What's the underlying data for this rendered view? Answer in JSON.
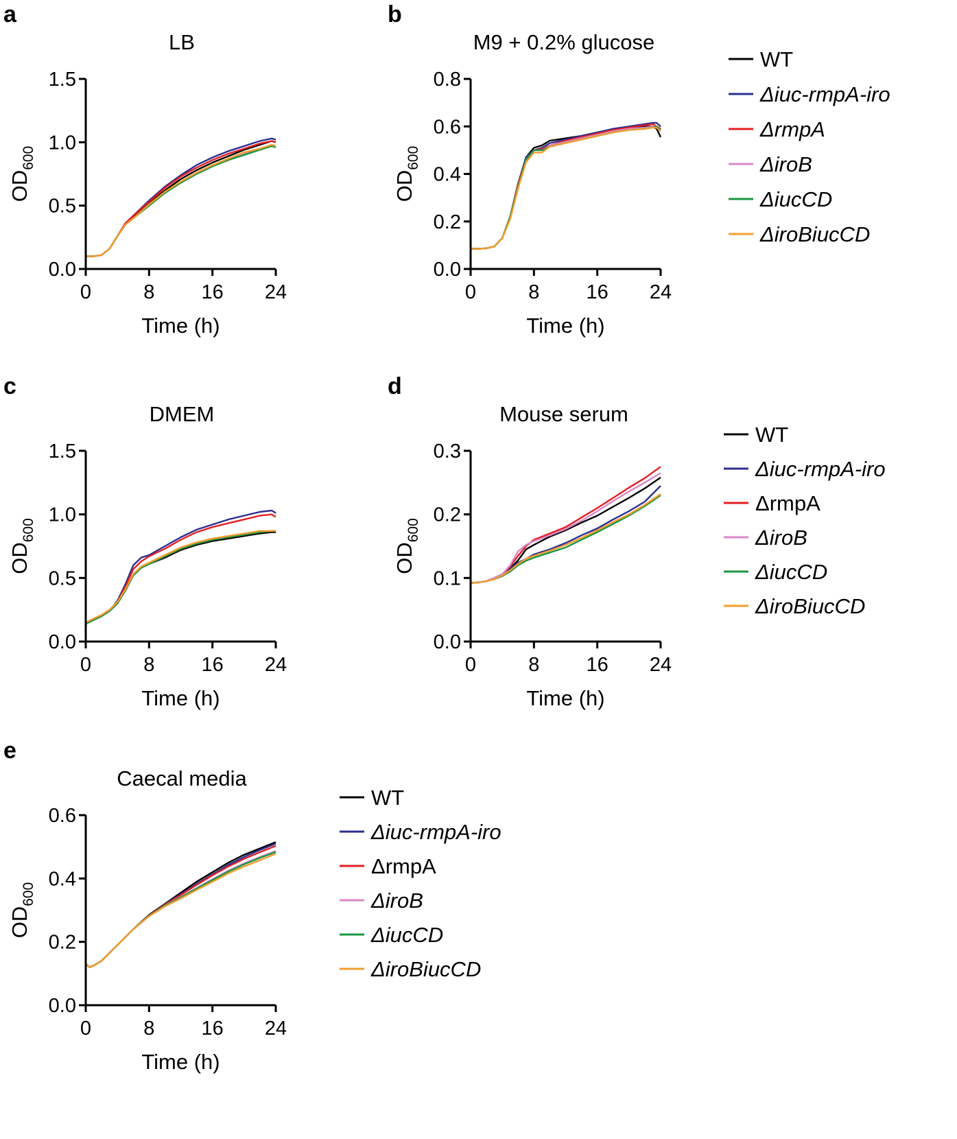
{
  "figure": {
    "colors": {
      "WT": "#000000",
      "iuc_rmpA_iro": "#2b2f8f",
      "rmpA": "#e31e24",
      "iroB": "#d988c8",
      "iucCD": "#1a9641",
      "iroBiucCD": "#f39c2d"
    }
  },
  "chart_data": [
    {
      "panel": "a",
      "type": "line",
      "title": "LB",
      "xlabel": "Time (h)",
      "ylabel": "OD",
      "ylabel_sub": "600",
      "xlim": [
        0,
        24
      ],
      "ylim": [
        0,
        1.5
      ],
      "xticks": [
        "0",
        "8",
        "16",
        "24"
      ],
      "yticks": [
        "0.0",
        "0.5",
        "1.0",
        "1.5"
      ],
      "x": [
        0,
        1,
        2,
        3,
        4,
        5,
        6,
        8,
        10,
        12,
        14,
        16,
        18,
        20,
        22,
        23.5,
        24
      ],
      "series": [
        {
          "name": "WT",
          "values": [
            0.1,
            0.1,
            0.11,
            0.16,
            0.26,
            0.35,
            0.41,
            0.52,
            0.62,
            0.71,
            0.78,
            0.84,
            0.89,
            0.94,
            0.98,
            1.01,
            1.0
          ]
        },
        {
          "name": "Δiuc-rmpA-iro",
          "values": [
            0.1,
            0.1,
            0.11,
            0.16,
            0.26,
            0.36,
            0.42,
            0.54,
            0.65,
            0.74,
            0.82,
            0.88,
            0.93,
            0.97,
            1.01,
            1.03,
            1.02
          ]
        },
        {
          "name": "ΔrmpA",
          "values": [
            0.1,
            0.1,
            0.11,
            0.16,
            0.26,
            0.36,
            0.42,
            0.53,
            0.64,
            0.73,
            0.8,
            0.86,
            0.91,
            0.95,
            0.99,
            1.01,
            1.0
          ]
        },
        {
          "name": "ΔiroB",
          "values": [
            0.1,
            0.1,
            0.11,
            0.16,
            0.26,
            0.35,
            0.4,
            0.5,
            0.6,
            0.68,
            0.75,
            0.81,
            0.86,
            0.91,
            0.95,
            0.97,
            0.97
          ]
        },
        {
          "name": "ΔiucCD",
          "values": [
            0.1,
            0.1,
            0.11,
            0.16,
            0.26,
            0.35,
            0.4,
            0.5,
            0.6,
            0.68,
            0.75,
            0.81,
            0.86,
            0.9,
            0.94,
            0.97,
            0.96
          ]
        },
        {
          "name": "ΔiroBiucCD",
          "values": [
            0.1,
            0.1,
            0.11,
            0.16,
            0.26,
            0.35,
            0.4,
            0.51,
            0.61,
            0.69,
            0.76,
            0.82,
            0.87,
            0.92,
            0.95,
            0.98,
            0.97
          ]
        }
      ]
    },
    {
      "panel": "b",
      "type": "line",
      "title": "M9 + 0.2% glucose",
      "xlabel": "Time (h)",
      "ylabel": "OD",
      "ylabel_sub": "600",
      "xlim": [
        0,
        24
      ],
      "ylim": [
        0,
        0.8
      ],
      "xticks": [
        "0",
        "8",
        "16",
        "24"
      ],
      "yticks": [
        "0.0",
        "0.2",
        "0.4",
        "0.6",
        "0.8"
      ],
      "x": [
        0,
        1,
        2,
        3,
        4,
        5,
        6,
        7,
        8,
        9,
        10,
        12,
        14,
        16,
        18,
        20,
        22,
        23,
        23.5,
        24
      ],
      "series": [
        {
          "name": "WT",
          "values": [
            0.085,
            0.085,
            0.087,
            0.095,
            0.13,
            0.22,
            0.36,
            0.47,
            0.51,
            0.52,
            0.54,
            0.55,
            0.56,
            0.575,
            0.585,
            0.595,
            0.6,
            0.6,
            0.59,
            0.555
          ]
        },
        {
          "name": "Δiuc-rmpA-iro",
          "values": [
            0.085,
            0.085,
            0.087,
            0.095,
            0.13,
            0.22,
            0.36,
            0.47,
            0.5,
            0.51,
            0.53,
            0.545,
            0.56,
            0.575,
            0.59,
            0.6,
            0.61,
            0.615,
            0.615,
            0.6
          ]
        },
        {
          "name": "ΔrmpA",
          "values": [
            0.085,
            0.085,
            0.087,
            0.095,
            0.13,
            0.22,
            0.36,
            0.46,
            0.5,
            0.505,
            0.52,
            0.54,
            0.555,
            0.57,
            0.585,
            0.595,
            0.605,
            0.61,
            0.6,
            0.59
          ]
        },
        {
          "name": "ΔiroB",
          "values": [
            0.085,
            0.085,
            0.087,
            0.095,
            0.13,
            0.22,
            0.35,
            0.46,
            0.5,
            0.5,
            0.52,
            0.535,
            0.55,
            0.565,
            0.58,
            0.59,
            0.595,
            0.6,
            0.6,
            0.585
          ]
        },
        {
          "name": "ΔiucCD",
          "values": [
            0.085,
            0.085,
            0.087,
            0.095,
            0.13,
            0.22,
            0.35,
            0.46,
            0.5,
            0.5,
            0.515,
            0.53,
            0.545,
            0.56,
            0.575,
            0.585,
            0.59,
            0.595,
            0.6,
            0.585
          ]
        },
        {
          "name": "ΔiroBiucCD",
          "values": [
            0.085,
            0.085,
            0.087,
            0.095,
            0.13,
            0.21,
            0.34,
            0.45,
            0.49,
            0.49,
            0.515,
            0.53,
            0.545,
            0.56,
            0.575,
            0.585,
            0.59,
            0.595,
            0.595,
            0.58
          ]
        }
      ]
    },
    {
      "panel": "c",
      "type": "line",
      "title": "DMEM",
      "xlabel": "Time (h)",
      "ylabel": "OD",
      "ylabel_sub": "600",
      "xlim": [
        0,
        24
      ],
      "ylim": [
        0,
        1.5
      ],
      "xticks": [
        "0",
        "8",
        "16",
        "24"
      ],
      "yticks": [
        "0.0",
        "0.5",
        "1.0",
        "1.5"
      ],
      "x": [
        0,
        1,
        2,
        3,
        4,
        5,
        6,
        7,
        8,
        10,
        12,
        14,
        16,
        18,
        20,
        22,
        23.5,
        24
      ],
      "series": [
        {
          "name": "WT",
          "values": [
            0.14,
            0.17,
            0.2,
            0.24,
            0.3,
            0.4,
            0.52,
            0.58,
            0.61,
            0.66,
            0.72,
            0.76,
            0.79,
            0.81,
            0.83,
            0.85,
            0.86,
            0.86
          ]
        },
        {
          "name": "Δiuc-rmpA-iro",
          "values": [
            0.14,
            0.17,
            0.2,
            0.24,
            0.32,
            0.45,
            0.6,
            0.66,
            0.68,
            0.75,
            0.82,
            0.88,
            0.92,
            0.96,
            0.99,
            1.02,
            1.03,
            1.01
          ]
        },
        {
          "name": "ΔrmpA",
          "values": [
            0.14,
            0.17,
            0.2,
            0.24,
            0.31,
            0.43,
            0.57,
            0.63,
            0.67,
            0.73,
            0.8,
            0.86,
            0.9,
            0.93,
            0.96,
            0.99,
            1.0,
            0.98
          ]
        },
        {
          "name": "ΔiroB",
          "values": [
            0.14,
            0.17,
            0.2,
            0.24,
            0.3,
            0.4,
            0.52,
            0.58,
            0.61,
            0.67,
            0.73,
            0.77,
            0.8,
            0.82,
            0.84,
            0.86,
            0.87,
            0.87
          ]
        },
        {
          "name": "ΔiucCD",
          "values": [
            0.14,
            0.17,
            0.2,
            0.24,
            0.3,
            0.4,
            0.52,
            0.58,
            0.61,
            0.67,
            0.73,
            0.77,
            0.8,
            0.82,
            0.84,
            0.86,
            0.87,
            0.87
          ]
        },
        {
          "name": "ΔiroBiucCD",
          "values": [
            0.15,
            0.18,
            0.21,
            0.25,
            0.31,
            0.41,
            0.53,
            0.59,
            0.62,
            0.68,
            0.74,
            0.78,
            0.81,
            0.83,
            0.85,
            0.87,
            0.87,
            0.87
          ]
        }
      ]
    },
    {
      "panel": "d",
      "type": "line",
      "title": "Mouse serum",
      "xlabel": "Time (h)",
      "ylabel": "OD",
      "ylabel_sub": "600",
      "xlim": [
        0,
        24
      ],
      "ylim": [
        0,
        0.3
      ],
      "xticks": [
        "0",
        "8",
        "16",
        "24"
      ],
      "yticks": [
        "0.0",
        "0.1",
        "0.2",
        "0.3"
      ],
      "x": [
        0,
        1,
        2,
        3,
        4,
        5,
        6,
        7,
        8,
        10,
        12,
        14,
        16,
        18,
        20,
        22,
        24
      ],
      "series": [
        {
          "name": "WT",
          "values": [
            0.092,
            0.093,
            0.095,
            0.1,
            0.106,
            0.115,
            0.128,
            0.145,
            0.152,
            0.165,
            0.175,
            0.187,
            0.198,
            0.212,
            0.226,
            0.241,
            0.258
          ]
        },
        {
          "name": "Δiuc-rmpA-iro",
          "values": [
            0.092,
            0.093,
            0.095,
            0.1,
            0.106,
            0.115,
            0.124,
            0.13,
            0.137,
            0.145,
            0.155,
            0.167,
            0.178,
            0.192,
            0.205,
            0.22,
            0.245
          ]
        },
        {
          "name": "ΔrmpA",
          "values": [
            0.092,
            0.093,
            0.095,
            0.1,
            0.106,
            0.118,
            0.135,
            0.15,
            0.16,
            0.17,
            0.18,
            0.195,
            0.21,
            0.226,
            0.242,
            0.257,
            0.275
          ]
        },
        {
          "name": "ΔiroB",
          "values": [
            0.092,
            0.093,
            0.095,
            0.1,
            0.106,
            0.12,
            0.142,
            0.152,
            0.158,
            0.167,
            0.177,
            0.19,
            0.205,
            0.221,
            0.236,
            0.25,
            0.265
          ]
        },
        {
          "name": "ΔiucCD",
          "values": [
            0.092,
            0.093,
            0.095,
            0.098,
            0.103,
            0.11,
            0.12,
            0.127,
            0.132,
            0.14,
            0.148,
            0.16,
            0.172,
            0.185,
            0.198,
            0.213,
            0.23
          ]
        },
        {
          "name": "ΔiroBiucCD",
          "values": [
            0.092,
            0.093,
            0.095,
            0.098,
            0.104,
            0.112,
            0.122,
            0.13,
            0.135,
            0.143,
            0.152,
            0.163,
            0.175,
            0.188,
            0.2,
            0.215,
            0.232
          ]
        }
      ]
    },
    {
      "panel": "e",
      "type": "line",
      "title": "Caecal media",
      "xlabel": "Time (h)",
      "ylabel": "OD",
      "ylabel_sub": "600",
      "xlim": [
        0,
        24
      ],
      "ylim": [
        0,
        0.6
      ],
      "xticks": [
        "0",
        "8",
        "16",
        "24"
      ],
      "yticks": [
        "0.0",
        "0.2",
        "0.4",
        "0.6"
      ],
      "x": [
        0,
        0.5,
        1,
        2,
        3,
        4,
        6,
        8,
        10,
        12,
        14,
        16,
        18,
        20,
        22,
        24
      ],
      "series": [
        {
          "name": "WT",
          "values": [
            0.13,
            0.12,
            0.125,
            0.14,
            0.165,
            0.19,
            0.24,
            0.285,
            0.32,
            0.355,
            0.39,
            0.42,
            0.45,
            0.475,
            0.495,
            0.515
          ]
        },
        {
          "name": "Δiuc-rmpA-iro",
          "values": [
            0.13,
            0.12,
            0.125,
            0.14,
            0.165,
            0.19,
            0.24,
            0.283,
            0.318,
            0.35,
            0.383,
            0.413,
            0.443,
            0.468,
            0.49,
            0.51
          ]
        },
        {
          "name": "ΔrmpA",
          "values": [
            0.13,
            0.12,
            0.125,
            0.14,
            0.165,
            0.19,
            0.24,
            0.283,
            0.317,
            0.348,
            0.38,
            0.41,
            0.438,
            0.462,
            0.483,
            0.503
          ]
        },
        {
          "name": "ΔiroB",
          "values": [
            0.13,
            0.12,
            0.125,
            0.14,
            0.165,
            0.19,
            0.24,
            0.282,
            0.315,
            0.342,
            0.37,
            0.398,
            0.425,
            0.448,
            0.468,
            0.487
          ]
        },
        {
          "name": "ΔiucCD",
          "values": [
            0.13,
            0.12,
            0.125,
            0.14,
            0.165,
            0.19,
            0.24,
            0.282,
            0.314,
            0.34,
            0.368,
            0.395,
            0.422,
            0.445,
            0.465,
            0.484
          ]
        },
        {
          "name": "ΔiroBiucCD",
          "values": [
            0.13,
            0.12,
            0.125,
            0.14,
            0.165,
            0.19,
            0.24,
            0.281,
            0.312,
            0.337,
            0.364,
            0.39,
            0.416,
            0.438,
            0.458,
            0.478
          ]
        }
      ]
    }
  ],
  "legends": [
    {
      "id": "legend-ab",
      "items": [
        {
          "label": "WT",
          "key": "WT",
          "italic": false
        },
        {
          "label": "Δiuc-rmpA-iro",
          "key": "iuc_rmpA_iro",
          "italic": true
        },
        {
          "label": "ΔrmpA",
          "key": "rmpA",
          "italic": true
        },
        {
          "label": "ΔiroB",
          "key": "iroB",
          "italic": true
        },
        {
          "label": "ΔiucCD",
          "key": "iucCD",
          "italic": true
        },
        {
          "label": "ΔiroBiucCD",
          "key": "iroBiucCD",
          "italic": true
        }
      ]
    },
    {
      "id": "legend-cd",
      "items": [
        {
          "label": "WT",
          "key": "WT",
          "italic": false
        },
        {
          "label": "Δiuc-rmpA-iro",
          "key": "iuc_rmpA_iro",
          "italic": true
        },
        {
          "label": "ΔrmpA",
          "key": "rmpA",
          "italic": false
        },
        {
          "label": "ΔiroB",
          "key": "iroB",
          "italic": true
        },
        {
          "label": "ΔiucCD",
          "key": "iucCD",
          "italic": true
        },
        {
          "label": "ΔiroBiucCD",
          "key": "iroBiucCD",
          "italic": true
        }
      ]
    },
    {
      "id": "legend-e",
      "items": [
        {
          "label": "WT",
          "key": "WT",
          "italic": false
        },
        {
          "label": "Δiuc-rmpA-iro",
          "key": "iuc_rmpA_iro",
          "italic": true
        },
        {
          "label": "ΔrmpA",
          "key": "rmpA",
          "italic": false
        },
        {
          "label": "ΔiroB",
          "key": "iroB",
          "italic": true
        },
        {
          "label": "ΔiucCD",
          "key": "iucCD",
          "italic": true
        },
        {
          "label": "ΔiroBiucCD",
          "key": "iroBiucCD",
          "italic": true
        }
      ]
    }
  ]
}
